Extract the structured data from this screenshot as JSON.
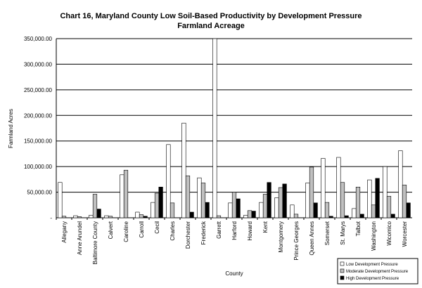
{
  "chart_data": {
    "type": "bar",
    "title_line1": "Chart 16, Maryland County Low Soil-Based Productivity by Development Pressure",
    "title_line2": "Farmland Acreage",
    "xlabel": "County",
    "ylabel": "Farmland Acres",
    "ylim": [
      0,
      350000
    ],
    "yticks": [
      "-",
      "50,000.00",
      "100,000.00",
      "150,000.00",
      "200,000.00",
      "250,000.00",
      "300,000.00",
      "350,000.00"
    ],
    "grid": true,
    "legend_position": "bottom-right",
    "categories": [
      "Allegany",
      "Anne Arundel",
      "Baltimore County",
      "Calvert",
      "Caroline",
      "Carroll",
      "Cecil",
      "Charles",
      "Dorchester",
      "Frederick",
      "Garrett",
      "Harford",
      "Howard",
      "Kent",
      "Montgomery",
      "Prince Georges",
      "Queen Annes",
      "Somerset",
      "St. Marys",
      "Talbot",
      "Washington",
      "Wicomico",
      "Worcester"
    ],
    "series": [
      {
        "name": "Low Development Pressure",
        "color": "#ffffff",
        "values": [
          69000,
          4000,
          5000,
          4000,
          84000,
          11000,
          30000,
          143000,
          185000,
          78000,
          350000,
          29000,
          5000,
          30000,
          39000,
          25000,
          68000,
          116000,
          118000,
          18000,
          74000,
          100000,
          131000
        ]
      },
      {
        "name": "Moderate Development Pressure",
        "color": "#c0c0c0",
        "values": [
          3000,
          2000,
          46000,
          3000,
          93000,
          6000,
          48000,
          29000,
          82000,
          68000,
          4000,
          50000,
          14000,
          46000,
          59000,
          7000,
          99000,
          30000,
          69000,
          60000,
          25000,
          42000,
          64000
        ]
      },
      {
        "name": "High Development Pressure",
        "color": "#000000",
        "values": [
          0,
          0,
          17000,
          0,
          0,
          3000,
          60000,
          0,
          11000,
          30000,
          0,
          37000,
          13000,
          69000,
          66000,
          0,
          29000,
          3000,
          4000,
          7000,
          77000,
          7000,
          29000
        ]
      }
    ]
  }
}
